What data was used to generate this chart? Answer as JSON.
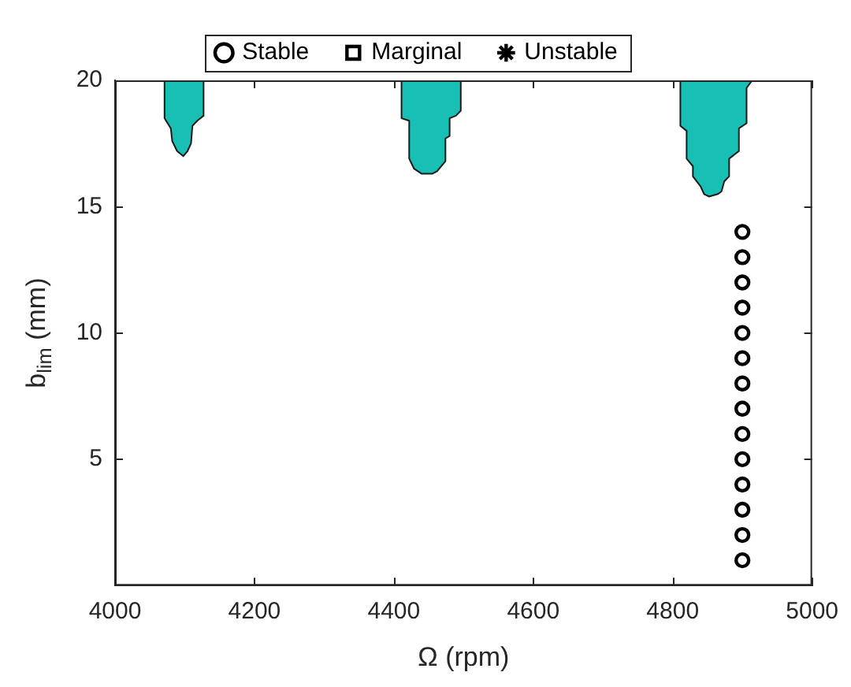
{
  "chart_data": {
    "type": "scatter",
    "xlabel": "Ω (rpm)",
    "ylabel": "b$_{lim}$ (mm)",
    "xlim": [
      4000,
      5000
    ],
    "xticks": [
      4000,
      4200,
      4400,
      4600,
      4800,
      5000
    ],
    "ylim": [
      0,
      20
    ],
    "yticks": [
      5,
      10,
      15,
      20
    ],
    "grid": false,
    "legend": "top",
    "series": [
      {
        "type": "area",
        "color": "#17bfb5",
        "x": [
          4071,
          4071,
          4080,
          4082,
          4089,
          4098,
          4104,
          4109,
          4111,
          4118,
          4127,
          4127
        ],
        "values": [
          20,
          18.5,
          18.1,
          17.6,
          17.2,
          17.0,
          17.2,
          17.5,
          18.2,
          18.4,
          18.6,
          20
        ]
      },
      {
        "type": "area",
        "color": "#17bfb5",
        "x": [
          4411,
          4411,
          4422,
          4422,
          4429,
          4440,
          4455,
          4462,
          4474,
          4474,
          4480,
          4480,
          4489,
          4496,
          4496
        ],
        "values": [
          20,
          18.5,
          18.4,
          16.9,
          16.5,
          16.3,
          16.3,
          16.4,
          16.8,
          17.7,
          17.8,
          18.5,
          18.6,
          18.8,
          20
        ]
      },
      {
        "type": "area",
        "color": "#17bfb5",
        "x": [
          4811,
          4811,
          4820,
          4820,
          4829,
          4829,
          4840,
          4845,
          4852,
          4865,
          4870,
          4874,
          4881,
          4881,
          4895,
          4895,
          4906,
          4906,
          4914
        ],
        "values": [
          20,
          18.2,
          18.0,
          16.9,
          16.6,
          16.2,
          15.8,
          15.5,
          15.4,
          15.5,
          15.6,
          16.0,
          16.2,
          16.9,
          17.2,
          18.1,
          18.3,
          19.7,
          20
        ]
      },
      {
        "name": "Stable",
        "marker": "circle",
        "color": "#000000",
        "x": [
          4900,
          4900,
          4900,
          4900,
          4900,
          4900,
          4900,
          4900,
          4900,
          4900,
          4900,
          4900,
          4900,
          4900
        ],
        "values": [
          1,
          2,
          3,
          4,
          5,
          6,
          7,
          8,
          9,
          10,
          11,
          12,
          13,
          14
        ]
      },
      {
        "name": "Marginal",
        "marker": "square",
        "color": "#000000"
      },
      {
        "name": "Unstable",
        "marker": "star",
        "color": "#000000"
      }
    ]
  }
}
